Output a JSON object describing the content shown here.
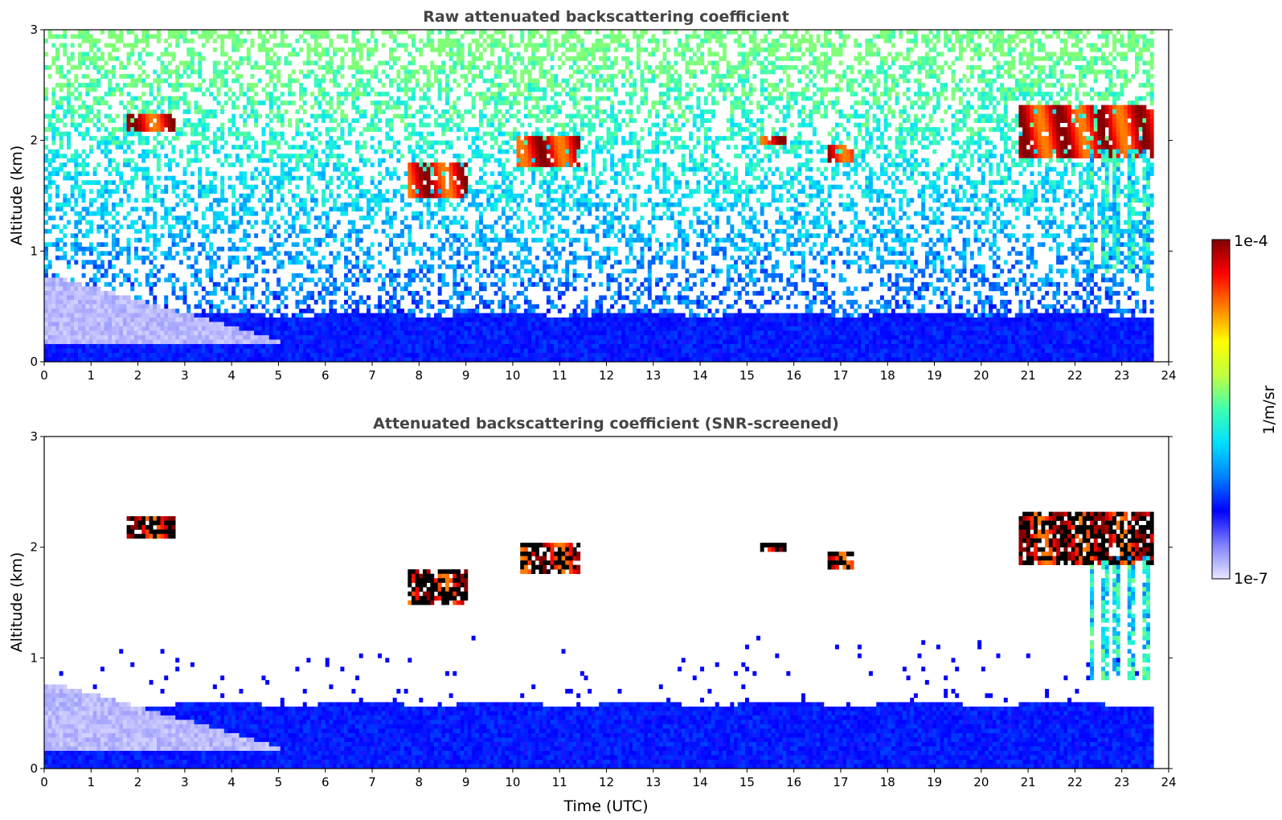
{
  "chart_data": [
    {
      "type": "heatmap",
      "title": "Raw attenuated backscattering coefficient",
      "xlabel": "",
      "ylabel": "Altitude (km)",
      "xlim": [
        0,
        24
      ],
      "ylim": [
        0,
        3
      ],
      "xticks": [
        "0",
        "1",
        "2",
        "3",
        "4",
        "5",
        "6",
        "7",
        "8",
        "9",
        "10",
        "11",
        "12",
        "13",
        "14",
        "15",
        "16",
        "17",
        "18",
        "19",
        "20",
        "21",
        "22",
        "23",
        "24"
      ],
      "yticks": [
        "0",
        "1",
        "2",
        "3"
      ],
      "features": [
        {
          "kind": "cloud",
          "x": [
            1.8,
            2.8
          ],
          "y": [
            2.08,
            2.25
          ],
          "level": 1.0
        },
        {
          "kind": "cloud",
          "x": [
            7.8,
            9.0
          ],
          "y": [
            1.5,
            1.78
          ],
          "level": 0.95
        },
        {
          "kind": "cloud",
          "x": [
            10.1,
            11.4
          ],
          "y": [
            1.75,
            2.05
          ],
          "level": 0.95
        },
        {
          "kind": "cloud",
          "x": [
            15.3,
            15.8
          ],
          "y": [
            1.95,
            2.05
          ],
          "level": 0.9
        },
        {
          "kind": "cloud",
          "x": [
            16.7,
            17.3
          ],
          "y": [
            1.8,
            1.95
          ],
          "level": 1.0
        },
        {
          "kind": "cloud",
          "x": [
            20.8,
            23.7
          ],
          "y": [
            1.85,
            2.3
          ],
          "level": 1.0
        },
        {
          "kind": "precip",
          "x": [
            22.3,
            23.7
          ],
          "y": [
            0.8,
            1.9
          ],
          "level": 0.45
        },
        {
          "kind": "aerosol_layer",
          "x": [
            0,
            5
          ],
          "y": [
            0.15,
            0.75
          ],
          "level": 0.02
        },
        {
          "kind": "boundary_layer",
          "x": [
            0,
            23.7
          ],
          "y": [
            0,
            0.45
          ],
          "level": 0.22
        }
      ]
    },
    {
      "type": "heatmap",
      "title": "Attenuated backscattering coefficient (SNR-screened)",
      "xlabel": "Time (UTC)",
      "ylabel": "Altitude (km)",
      "xlim": [
        0,
        24
      ],
      "ylim": [
        0,
        3
      ],
      "xticks": [
        "0",
        "1",
        "2",
        "3",
        "4",
        "5",
        "6",
        "7",
        "8",
        "9",
        "10",
        "11",
        "12",
        "13",
        "14",
        "15",
        "16",
        "17",
        "18",
        "19",
        "20",
        "21",
        "22",
        "23",
        "24"
      ],
      "yticks": [
        "0",
        "1",
        "2",
        "3"
      ],
      "features": [
        {
          "kind": "cloud",
          "x": [
            1.8,
            2.8
          ],
          "y": [
            2.08,
            2.28
          ],
          "level": 1.0
        },
        {
          "kind": "cloud",
          "x": [
            7.8,
            9.0
          ],
          "y": [
            1.5,
            1.8
          ],
          "level": 1.0
        },
        {
          "kind": "cloud",
          "x": [
            10.2,
            11.4
          ],
          "y": [
            1.75,
            2.05
          ],
          "level": 1.0
        },
        {
          "kind": "cloud",
          "x": [
            15.3,
            15.8
          ],
          "y": [
            1.95,
            2.05
          ],
          "level": 1.0
        },
        {
          "kind": "cloud",
          "x": [
            16.7,
            17.3
          ],
          "y": [
            1.8,
            1.95
          ],
          "level": 1.0
        },
        {
          "kind": "cloud",
          "x": [
            20.8,
            23.7
          ],
          "y": [
            1.85,
            2.3
          ],
          "level": 1.0
        },
        {
          "kind": "precip",
          "x": [
            22.3,
            23.7
          ],
          "y": [
            0.8,
            1.9
          ],
          "level": 0.45
        },
        {
          "kind": "aerosol_layer",
          "x": [
            0,
            5
          ],
          "y": [
            0.15,
            0.75
          ],
          "level": 0.02
        },
        {
          "kind": "boundary_layer",
          "x": [
            0,
            23.7
          ],
          "y": [
            0,
            0.6
          ],
          "level": 0.22
        }
      ]
    }
  ],
  "colorbar": {
    "label": "1/m/sr",
    "max_label": "1e-4",
    "min_label": "1e-7",
    "stops": [
      "#e8e8ff",
      "#8080ff",
      "#0000ff",
      "#0080ff",
      "#00e0ff",
      "#40ffb0",
      "#c0ff40",
      "#ffff00",
      "#ff8000",
      "#ff0000",
      "#800000"
    ]
  },
  "colors": {
    "cloud_core": "#000000",
    "no_data": "#ffffff",
    "title": "#444444"
  }
}
